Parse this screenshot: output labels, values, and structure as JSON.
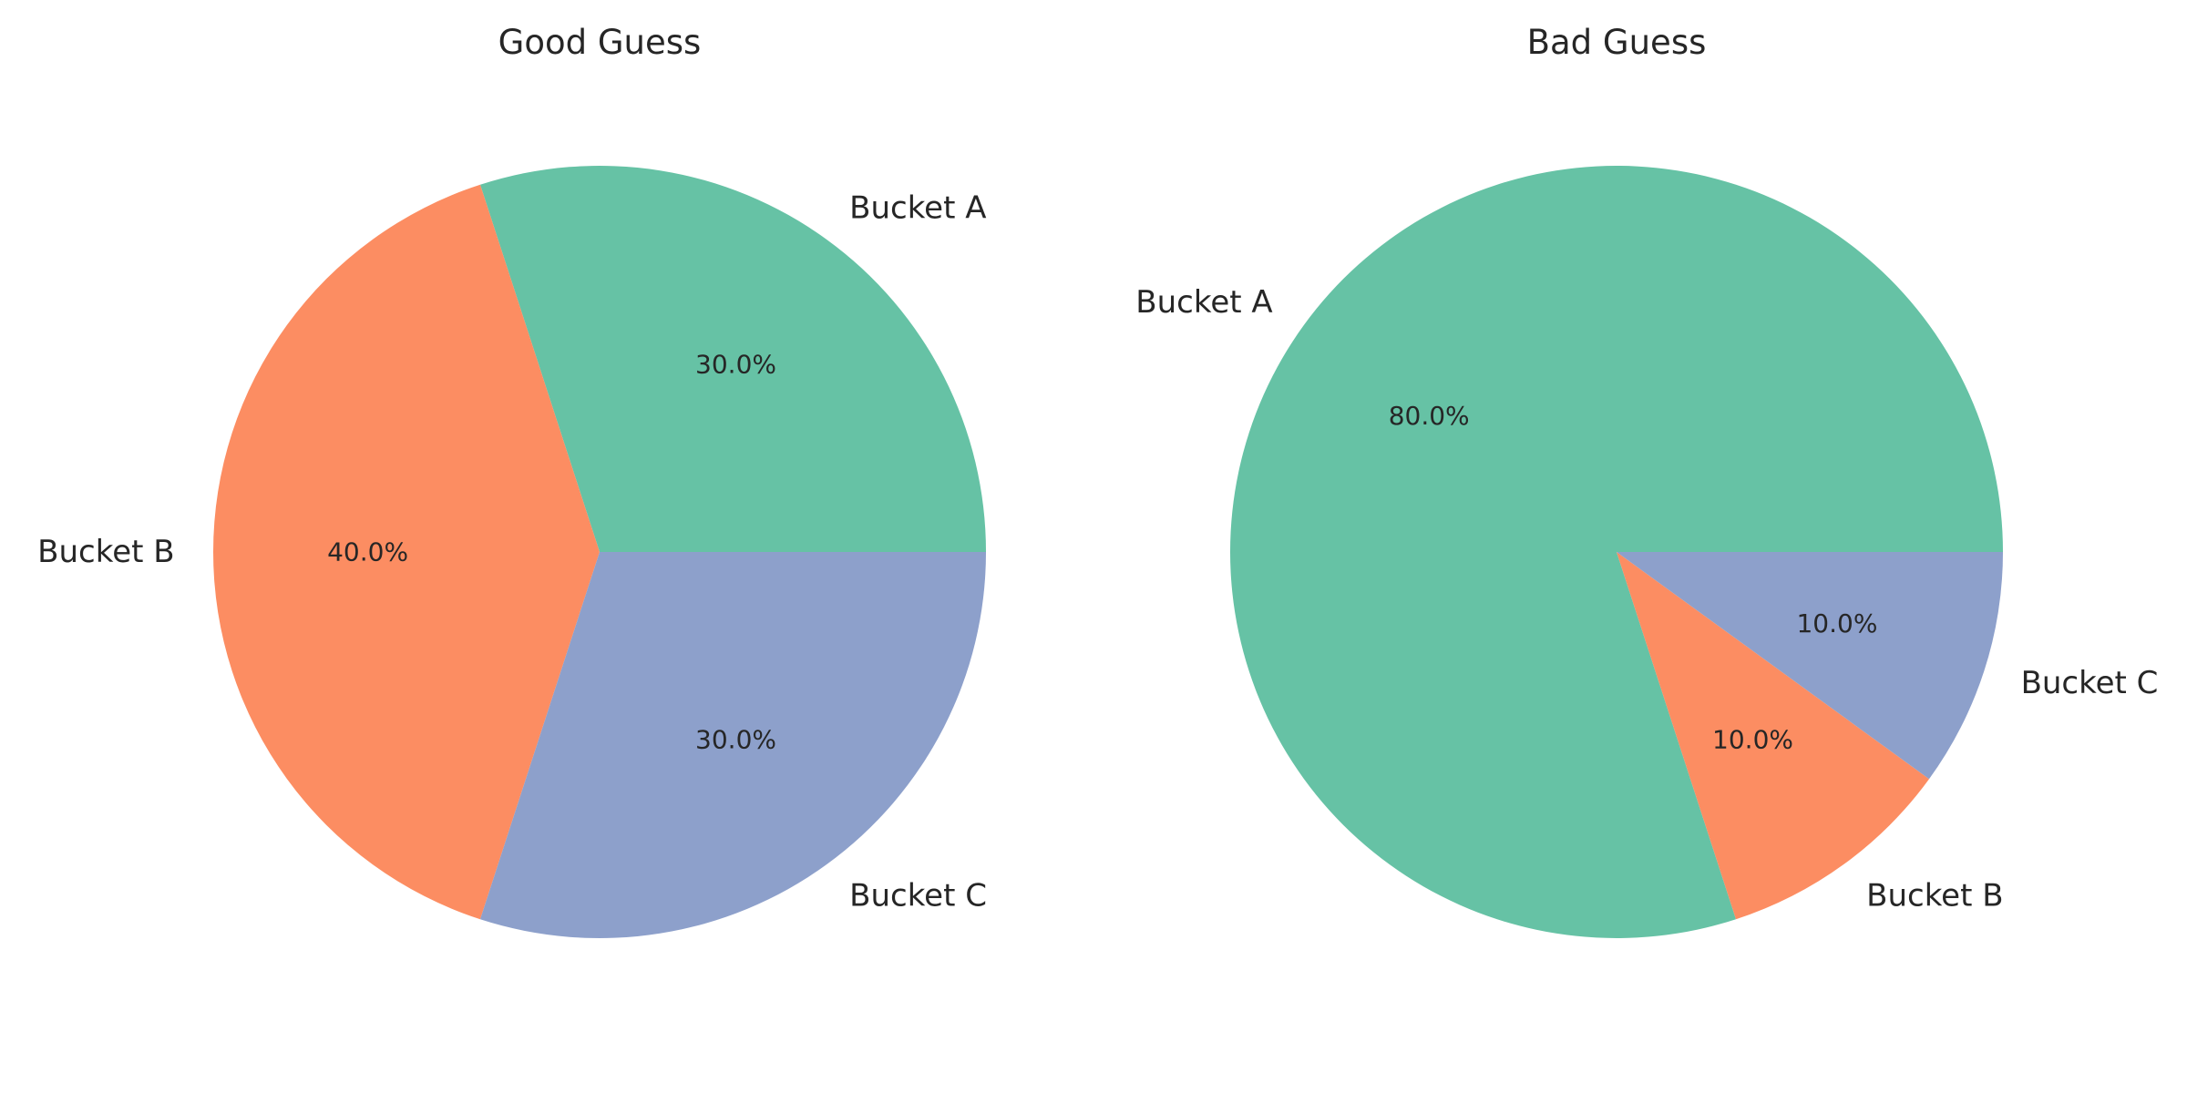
{
  "chart_data": [
    {
      "type": "pie",
      "title": "Good Guess",
      "categories": [
        "Bucket A",
        "Bucket B",
        "Bucket C"
      ],
      "values": [
        30,
        40,
        30
      ],
      "value_labels": [
        "30.0%",
        "40.0%",
        "30.0%"
      ],
      "colors": [
        "#66c2a5",
        "#fc8d62",
        "#8da0cb"
      ]
    },
    {
      "type": "pie",
      "title": "Bad Guess",
      "categories": [
        "Bucket A",
        "Bucket B",
        "Bucket C"
      ],
      "values": [
        80,
        10,
        10
      ],
      "value_labels": [
        "80.0%",
        "10.0%",
        "10.0%"
      ],
      "colors": [
        "#66c2a5",
        "#fc8d62",
        "#8da0cb"
      ]
    }
  ]
}
